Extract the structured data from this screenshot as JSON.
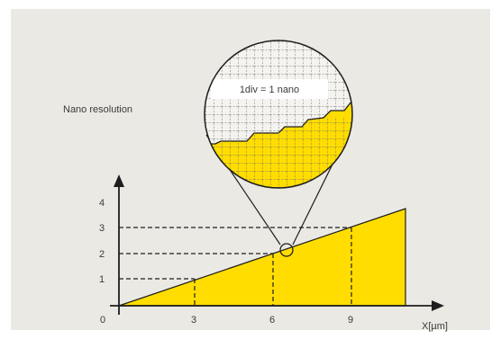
{
  "colors": {
    "background": "#ebe9e3",
    "fill": "#ffdd00",
    "line": "#1e1e1e",
    "grid": "#6b6b6b"
  },
  "labels": {
    "zoom_title": "Nano resolution",
    "division_note": "1div = 1 nano",
    "x_axis_label": "X[µm]",
    "origin_label": "0"
  },
  "x_ticks": [
    "3",
    "6",
    "9"
  ],
  "y_ticks": [
    "1",
    "2",
    "3",
    "4"
  ],
  "icons": [
    "magnifier-circle-icon",
    "arrow-up-icon",
    "arrow-right-icon"
  ]
}
